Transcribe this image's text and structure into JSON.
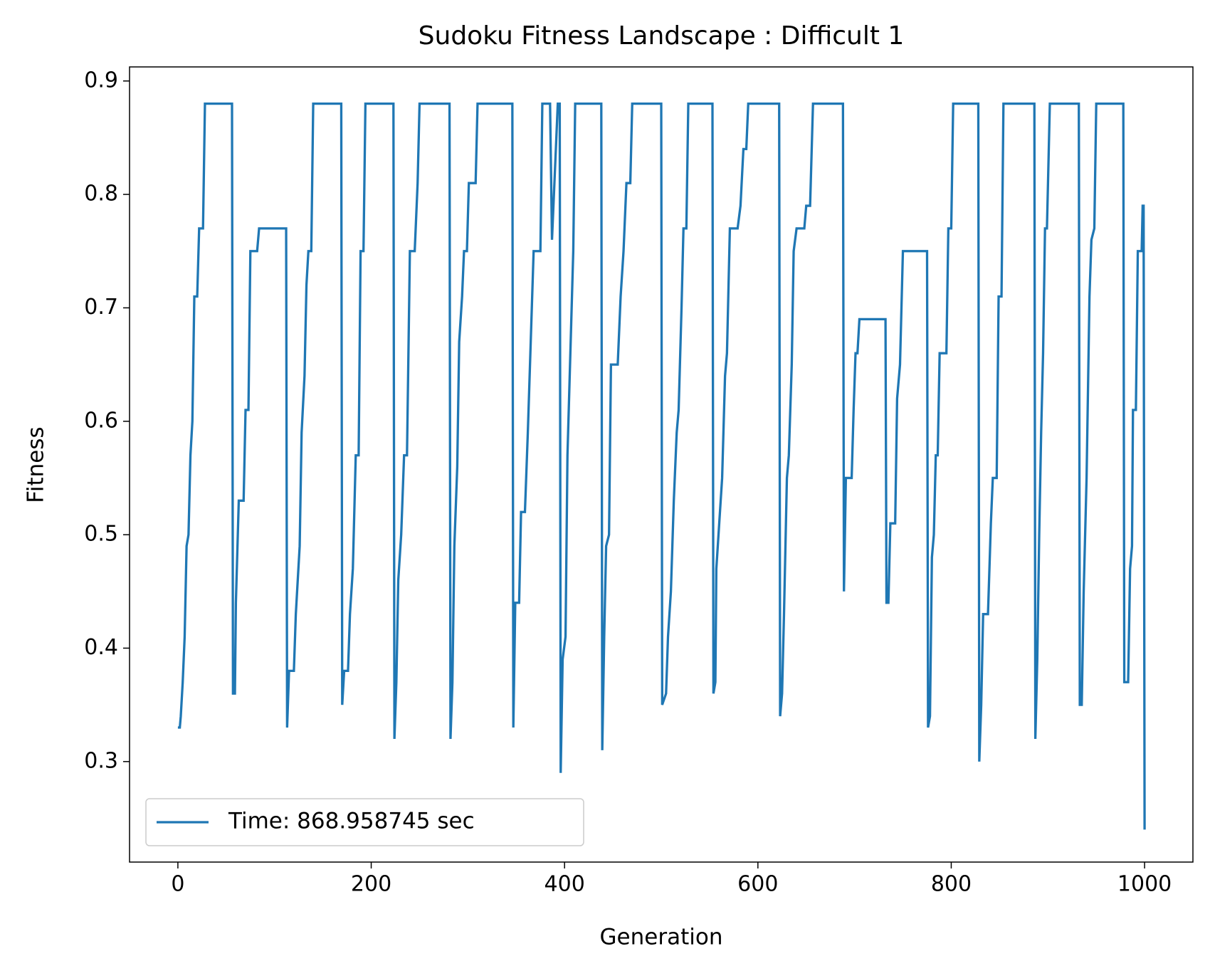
{
  "chart_data": {
    "type": "line",
    "title": "Sudoku Fitness Landscape : Difficult 1",
    "x_label": "Generation",
    "y_label": "Fitness",
    "xlim": [
      -50,
      1050
    ],
    "ylim": [
      0.2114,
      0.9124
    ],
    "xticks": [
      0,
      200,
      400,
      600,
      800,
      1000
    ],
    "yticks": [
      0.3,
      0.4,
      0.5,
      0.6,
      0.7,
      0.8,
      0.9
    ],
    "grid": false,
    "legend": "lower left",
    "x": [
      0,
      2,
      3,
      5,
      7,
      9,
      11,
      13,
      15,
      17,
      20,
      22,
      26,
      28,
      56,
      57,
      59,
      60,
      63,
      68,
      70,
      73,
      75,
      82,
      84,
      112,
      113,
      115,
      120,
      122,
      124,
      126,
      128,
      131,
      133,
      135,
      138,
      140,
      169,
      170,
      172,
      176,
      178,
      181,
      184,
      187,
      189,
      192,
      194,
      223,
      224,
      226,
      228,
      231,
      234,
      237,
      240,
      245,
      248,
      250,
      281,
      282,
      284,
      286,
      289,
      291,
      294,
      296,
      299,
      301,
      308,
      310,
      346,
      347,
      349,
      353,
      355,
      359,
      362,
      365,
      368,
      375,
      377,
      385,
      387,
      393,
      395,
      396,
      398,
      401,
      403,
      406,
      409,
      411,
      438,
      439,
      441,
      443,
      446,
      448,
      455,
      458,
      461,
      464,
      468,
      470,
      500,
      501,
      505,
      507,
      510,
      513,
      516,
      518,
      521,
      523,
      526,
      528,
      553,
      554,
      556,
      557,
      560,
      563,
      566,
      568,
      571,
      579,
      582,
      585,
      588,
      590,
      622,
      623,
      625,
      627,
      630,
      632,
      635,
      637,
      640,
      648,
      650,
      654,
      657,
      688,
      689,
      691,
      697,
      699,
      701,
      703,
      705,
      732,
      733,
      735,
      737,
      742,
      744,
      747,
      750,
      775,
      776,
      778,
      780,
      782,
      784,
      786,
      788,
      795,
      797,
      800,
      802,
      828,
      829,
      831,
      833,
      838,
      841,
      843,
      847,
      849,
      852,
      854,
      886,
      887,
      889,
      891,
      893,
      895,
      897,
      899,
      902,
      932,
      933,
      935,
      937,
      940,
      943,
      945,
      948,
      950,
      978,
      979,
      983,
      985,
      987,
      988,
      991,
      993,
      997,
      998,
      999,
      1000
    ],
    "series": [
      {
        "name": "Time: 868.958745 sec",
        "color": "#1f77b4",
        "values": [
          0.33,
          0.33,
          0.34,
          0.37,
          0.41,
          0.49,
          0.5,
          0.57,
          0.6,
          0.71,
          0.71,
          0.77,
          0.77,
          0.88,
          0.88,
          0.36,
          0.36,
          0.44,
          0.53,
          0.53,
          0.61,
          0.61,
          0.75,
          0.75,
          0.77,
          0.77,
          0.33,
          0.38,
          0.38,
          0.43,
          0.46,
          0.49,
          0.59,
          0.64,
          0.72,
          0.75,
          0.75,
          0.88,
          0.88,
          0.35,
          0.38,
          0.38,
          0.43,
          0.47,
          0.57,
          0.57,
          0.75,
          0.75,
          0.88,
          0.88,
          0.32,
          0.37,
          0.46,
          0.5,
          0.57,
          0.57,
          0.75,
          0.75,
          0.81,
          0.88,
          0.88,
          0.32,
          0.37,
          0.49,
          0.56,
          0.67,
          0.71,
          0.75,
          0.75,
          0.81,
          0.81,
          0.88,
          0.88,
          0.33,
          0.44,
          0.44,
          0.52,
          0.52,
          0.59,
          0.67,
          0.75,
          0.75,
          0.88,
          0.88,
          0.76,
          0.88,
          0.88,
          0.29,
          0.39,
          0.41,
          0.57,
          0.66,
          0.75,
          0.88,
          0.88,
          0.31,
          0.41,
          0.49,
          0.5,
          0.65,
          0.65,
          0.71,
          0.75,
          0.81,
          0.81,
          0.88,
          0.88,
          0.35,
          0.36,
          0.41,
          0.45,
          0.53,
          0.59,
          0.61,
          0.7,
          0.77,
          0.77,
          0.88,
          0.88,
          0.36,
          0.37,
          0.47,
          0.51,
          0.55,
          0.64,
          0.66,
          0.77,
          0.77,
          0.79,
          0.84,
          0.84,
          0.88,
          0.88,
          0.34,
          0.36,
          0.43,
          0.55,
          0.57,
          0.65,
          0.75,
          0.77,
          0.77,
          0.79,
          0.79,
          0.88,
          0.88,
          0.45,
          0.55,
          0.55,
          0.61,
          0.66,
          0.66,
          0.69,
          0.69,
          0.44,
          0.44,
          0.51,
          0.51,
          0.62,
          0.65,
          0.75,
          0.75,
          0.33,
          0.34,
          0.48,
          0.5,
          0.57,
          0.57,
          0.66,
          0.66,
          0.77,
          0.77,
          0.88,
          0.88,
          0.3,
          0.35,
          0.43,
          0.43,
          0.51,
          0.55,
          0.55,
          0.71,
          0.71,
          0.88,
          0.88,
          0.32,
          0.39,
          0.5,
          0.59,
          0.66,
          0.77,
          0.77,
          0.88,
          0.88,
          0.35,
          0.35,
          0.45,
          0.55,
          0.71,
          0.76,
          0.77,
          0.88,
          0.88,
          0.37,
          0.37,
          0.47,
          0.49,
          0.61,
          0.61,
          0.75,
          0.75,
          0.79,
          0.79,
          0.24
        ]
      }
    ]
  }
}
